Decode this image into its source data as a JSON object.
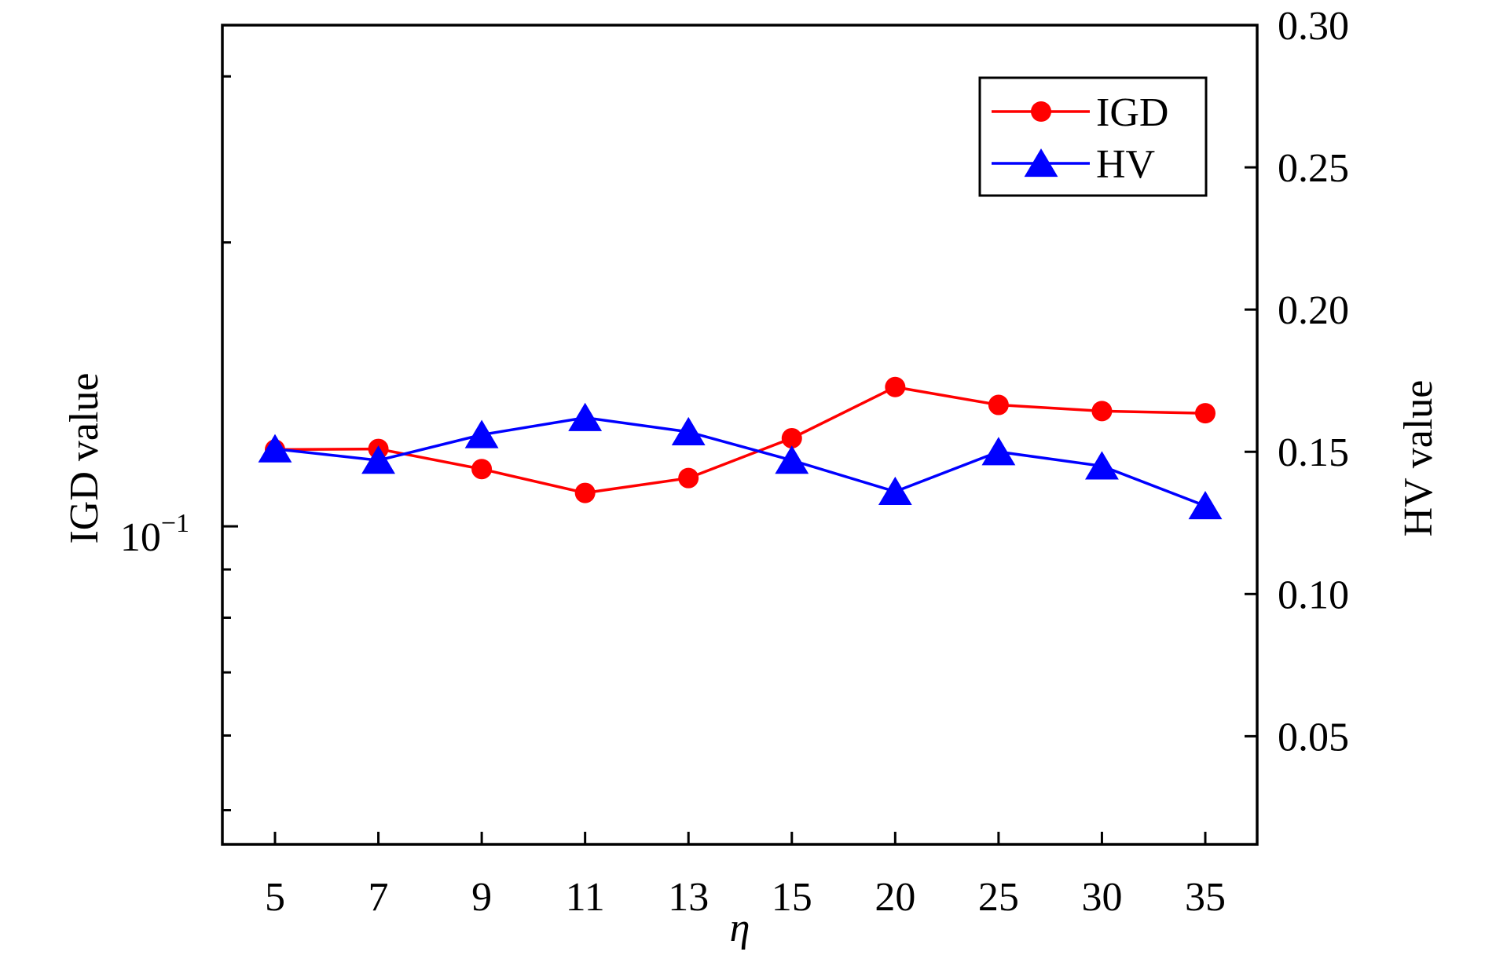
{
  "chart_data": {
    "type": "line",
    "xlabel": "η",
    "categories": [
      "5",
      "7",
      "9",
      "11",
      "13",
      "15",
      "20",
      "25",
      "30",
      "35"
    ],
    "y_left": {
      "label": "IGD value",
      "scale": "log",
      "range": [
        0.046,
        0.34
      ],
      "tick_label_base": "10",
      "tick_label_exp": "−1",
      "major_ticks": [
        0.1
      ],
      "minor_ticks": [
        0.05,
        0.06,
        0.07,
        0.08,
        0.09,
        0.2,
        0.3
      ]
    },
    "y_right": {
      "label": "HV value",
      "scale": "linear",
      "range": [
        0.012,
        0.3
      ],
      "ticks": [
        0.05,
        0.1,
        0.15,
        0.2,
        0.25,
        0.3
      ],
      "tick_labels": [
        "0.05",
        "0.10",
        "0.15",
        "0.20",
        "0.25",
        "0.30"
      ]
    },
    "series": [
      {
        "name": "IGD",
        "axis": "left",
        "color": "#ff0000",
        "marker": "circle",
        "values": [
          0.1206,
          0.1208,
          0.115,
          0.1085,
          0.1125,
          0.124,
          0.1405,
          0.1345,
          0.1325,
          0.1318
        ]
      },
      {
        "name": "HV",
        "axis": "right",
        "color": "#0000ff",
        "marker": "triangle",
        "values": [
          0.151,
          0.147,
          0.156,
          0.162,
          0.157,
          0.147,
          0.136,
          0.15,
          0.145,
          0.131
        ]
      }
    ],
    "legend": {
      "position": "top-right",
      "entries": [
        "IGD",
        "HV"
      ]
    },
    "grid": false
  }
}
